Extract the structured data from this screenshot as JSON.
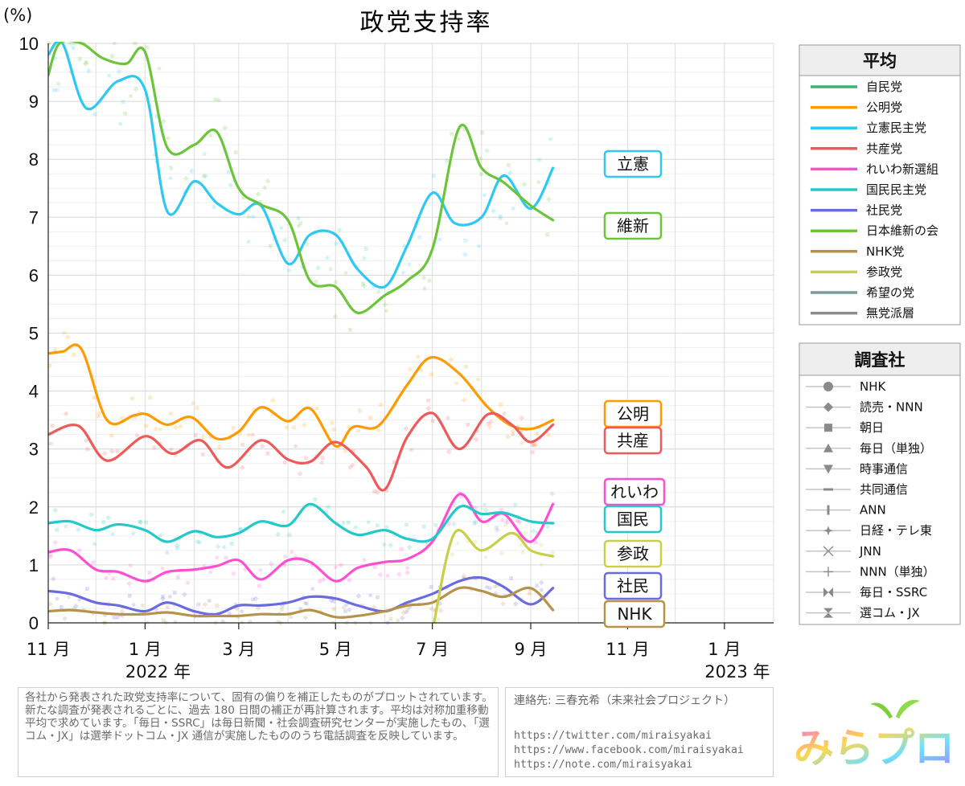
{
  "chart_data": {
    "type": "line",
    "title": "政党支持率",
    "ylabel": "(%)",
    "ylim": [
      0,
      10
    ],
    "yticks": [
      0,
      1,
      2,
      3,
      4,
      5,
      6,
      7,
      8,
      9,
      10
    ],
    "xlim": [
      "2021-11-01",
      "2023-02-01"
    ],
    "xticks": [
      {
        "date": "2021-11-01",
        "label": "11 月"
      },
      {
        "date": "2022-01-01",
        "label": "1 月"
      },
      {
        "date": "2022-03-01",
        "label": "3 月"
      },
      {
        "date": "2022-05-01",
        "label": "5 月"
      },
      {
        "date": "2022-07-01",
        "label": "7 月"
      },
      {
        "date": "2022-09-01",
        "label": "9 月"
      },
      {
        "date": "2022-11-01",
        "label": "11 月"
      },
      {
        "date": "2023-01-01",
        "label": "1 月"
      }
    ],
    "year_labels": [
      {
        "date": "2022-01-01",
        "label": "2022 年"
      },
      {
        "date": "2023-01-01",
        "label": "2023 年"
      }
    ],
    "grid": true,
    "series": [
      {
        "name": "自民党",
        "color": "#3cb371",
        "points": []
      },
      {
        "name": "公明党",
        "color": "#ff9a00",
        "tag": "公明",
        "points": [
          [
            "2021-11-01",
            4.65
          ],
          [
            "2021-11-10",
            4.68
          ],
          [
            "2021-11-22",
            4.72
          ],
          [
            "2021-12-08",
            3.5
          ],
          [
            "2021-12-25",
            3.58
          ],
          [
            "2022-01-02",
            3.6
          ],
          [
            "2022-01-15",
            3.42
          ],
          [
            "2022-01-30",
            3.55
          ],
          [
            "2022-02-15",
            3.18
          ],
          [
            "2022-03-01",
            3.3
          ],
          [
            "2022-03-15",
            3.72
          ],
          [
            "2022-04-01",
            3.48
          ],
          [
            "2022-04-15",
            3.7
          ],
          [
            "2022-05-01",
            3.05
          ],
          [
            "2022-05-12",
            3.38
          ],
          [
            "2022-05-28",
            3.4
          ],
          [
            "2022-06-15",
            4.1
          ],
          [
            "2022-06-30",
            4.58
          ],
          [
            "2022-07-18",
            4.3
          ],
          [
            "2022-08-05",
            3.72
          ],
          [
            "2022-08-20",
            3.4
          ],
          [
            "2022-09-02",
            3.35
          ],
          [
            "2022-09-15",
            3.5
          ]
        ]
      },
      {
        "name": "立憲民主党",
        "color": "#2ec8f3",
        "tag": "立憲",
        "points": [
          [
            "2021-11-01",
            9.8
          ],
          [
            "2021-11-10",
            10.0
          ],
          [
            "2021-11-25",
            8.88
          ],
          [
            "2021-12-15",
            9.35
          ],
          [
            "2022-01-01",
            9.2
          ],
          [
            "2022-01-15",
            7.1
          ],
          [
            "2022-02-01",
            7.62
          ],
          [
            "2022-02-15",
            7.25
          ],
          [
            "2022-03-01",
            7.05
          ],
          [
            "2022-03-15",
            7.2
          ],
          [
            "2022-04-01",
            6.2
          ],
          [
            "2022-04-15",
            6.7
          ],
          [
            "2022-05-01",
            6.7
          ],
          [
            "2022-05-15",
            6.1
          ],
          [
            "2022-06-01",
            5.8
          ],
          [
            "2022-06-15",
            6.5
          ],
          [
            "2022-07-01",
            7.42
          ],
          [
            "2022-07-15",
            6.9
          ],
          [
            "2022-08-01",
            7.0
          ],
          [
            "2022-08-15",
            7.72
          ],
          [
            "2022-09-01",
            7.15
          ],
          [
            "2022-09-15",
            7.85
          ]
        ]
      },
      {
        "name": "共産党",
        "color": "#ee5a5a",
        "tag": "共産",
        "points": [
          [
            "2021-11-01",
            3.25
          ],
          [
            "2021-11-20",
            3.4
          ],
          [
            "2021-12-08",
            2.8
          ],
          [
            "2022-01-01",
            3.22
          ],
          [
            "2022-01-18",
            2.92
          ],
          [
            "2022-02-05",
            3.15
          ],
          [
            "2022-02-22",
            2.68
          ],
          [
            "2022-03-15",
            3.15
          ],
          [
            "2022-04-01",
            2.82
          ],
          [
            "2022-04-15",
            2.78
          ],
          [
            "2022-05-01",
            3.12
          ],
          [
            "2022-05-20",
            2.7
          ],
          [
            "2022-06-01",
            2.3
          ],
          [
            "2022-06-15",
            3.2
          ],
          [
            "2022-07-01",
            3.62
          ],
          [
            "2022-07-18",
            3.0
          ],
          [
            "2022-08-05",
            3.6
          ],
          [
            "2022-08-20",
            3.42
          ],
          [
            "2022-09-01",
            3.12
          ],
          [
            "2022-09-15",
            3.42
          ]
        ]
      },
      {
        "name": "れいわ新選組",
        "color": "#ff4fd0",
        "tag": "れいわ",
        "points": [
          [
            "2021-11-01",
            1.22
          ],
          [
            "2021-11-15",
            1.25
          ],
          [
            "2021-12-01",
            0.92
          ],
          [
            "2021-12-15",
            0.88
          ],
          [
            "2022-01-01",
            0.72
          ],
          [
            "2022-01-15",
            0.88
          ],
          [
            "2022-02-01",
            0.92
          ],
          [
            "2022-02-15",
            0.98
          ],
          [
            "2022-03-01",
            1.08
          ],
          [
            "2022-03-15",
            0.75
          ],
          [
            "2022-04-01",
            1.08
          ],
          [
            "2022-04-15",
            1.05
          ],
          [
            "2022-05-01",
            0.72
          ],
          [
            "2022-05-15",
            0.95
          ],
          [
            "2022-06-01",
            1.05
          ],
          [
            "2022-06-15",
            1.1
          ],
          [
            "2022-07-01",
            1.4
          ],
          [
            "2022-07-18",
            2.22
          ],
          [
            "2022-08-01",
            1.75
          ],
          [
            "2022-08-15",
            1.88
          ],
          [
            "2022-09-01",
            1.4
          ],
          [
            "2022-09-15",
            2.05
          ]
        ]
      },
      {
        "name": "国民民主党",
        "color": "#23c8c8",
        "tag": "国民",
        "points": [
          [
            "2021-11-01",
            1.72
          ],
          [
            "2021-11-15",
            1.75
          ],
          [
            "2021-12-01",
            1.6
          ],
          [
            "2021-12-15",
            1.7
          ],
          [
            "2022-01-01",
            1.6
          ],
          [
            "2022-01-15",
            1.4
          ],
          [
            "2022-02-01",
            1.58
          ],
          [
            "2022-02-15",
            1.48
          ],
          [
            "2022-03-01",
            1.55
          ],
          [
            "2022-03-15",
            1.75
          ],
          [
            "2022-04-01",
            1.68
          ],
          [
            "2022-04-15",
            2.05
          ],
          [
            "2022-05-01",
            1.72
          ],
          [
            "2022-05-15",
            1.52
          ],
          [
            "2022-06-01",
            1.6
          ],
          [
            "2022-06-15",
            1.45
          ],
          [
            "2022-07-01",
            1.45
          ],
          [
            "2022-07-18",
            2.0
          ],
          [
            "2022-08-01",
            1.88
          ],
          [
            "2022-08-15",
            1.9
          ],
          [
            "2022-09-01",
            1.75
          ],
          [
            "2022-09-15",
            1.72
          ]
        ]
      },
      {
        "name": "社民党",
        "color": "#6b6be0",
        "tag": "社民",
        "points": [
          [
            "2021-11-01",
            0.55
          ],
          [
            "2021-11-15",
            0.5
          ],
          [
            "2021-12-01",
            0.35
          ],
          [
            "2021-12-15",
            0.3
          ],
          [
            "2022-01-01",
            0.2
          ],
          [
            "2022-01-15",
            0.35
          ],
          [
            "2022-02-01",
            0.2
          ],
          [
            "2022-02-15",
            0.15
          ],
          [
            "2022-03-01",
            0.3
          ],
          [
            "2022-03-15",
            0.3
          ],
          [
            "2022-04-01",
            0.35
          ],
          [
            "2022-04-15",
            0.45
          ],
          [
            "2022-05-01",
            0.42
          ],
          [
            "2022-05-15",
            0.3
          ],
          [
            "2022-06-01",
            0.2
          ],
          [
            "2022-06-15",
            0.35
          ],
          [
            "2022-07-01",
            0.5
          ],
          [
            "2022-07-18",
            0.72
          ],
          [
            "2022-08-01",
            0.78
          ],
          [
            "2022-08-15",
            0.62
          ],
          [
            "2022-09-01",
            0.32
          ],
          [
            "2022-09-15",
            0.6
          ]
        ]
      },
      {
        "name": "日本維新の会",
        "color": "#6cc43a",
        "tag": "維新",
        "points": [
          [
            "2021-11-01",
            9.45
          ],
          [
            "2021-11-08",
            10.0
          ],
          [
            "2021-11-22",
            10.0
          ],
          [
            "2021-12-05",
            9.75
          ],
          [
            "2021-12-20",
            9.65
          ],
          [
            "2022-01-01",
            9.85
          ],
          [
            "2022-01-15",
            8.2
          ],
          [
            "2022-02-01",
            8.25
          ],
          [
            "2022-02-15",
            8.48
          ],
          [
            "2022-03-01",
            7.5
          ],
          [
            "2022-03-15",
            7.22
          ],
          [
            "2022-04-01",
            6.95
          ],
          [
            "2022-04-15",
            5.9
          ],
          [
            "2022-05-01",
            5.8
          ],
          [
            "2022-05-15",
            5.35
          ],
          [
            "2022-06-01",
            5.65
          ],
          [
            "2022-06-15",
            5.9
          ],
          [
            "2022-07-01",
            6.45
          ],
          [
            "2022-07-18",
            8.55
          ],
          [
            "2022-08-01",
            7.85
          ],
          [
            "2022-08-15",
            7.6
          ],
          [
            "2022-09-01",
            7.2
          ],
          [
            "2022-09-15",
            6.95
          ]
        ]
      },
      {
        "name": "NHK党",
        "color": "#b8924a",
        "tag": "NHK",
        "points": [
          [
            "2021-11-01",
            0.2
          ],
          [
            "2021-11-15",
            0.22
          ],
          [
            "2021-12-01",
            0.18
          ],
          [
            "2021-12-15",
            0.15
          ],
          [
            "2022-01-01",
            0.15
          ],
          [
            "2022-01-15",
            0.18
          ],
          [
            "2022-02-01",
            0.12
          ],
          [
            "2022-02-15",
            0.12
          ],
          [
            "2022-03-01",
            0.12
          ],
          [
            "2022-03-15",
            0.15
          ],
          [
            "2022-04-01",
            0.15
          ],
          [
            "2022-04-15",
            0.22
          ],
          [
            "2022-05-01",
            0.1
          ],
          [
            "2022-05-15",
            0.12
          ],
          [
            "2022-06-01",
            0.2
          ],
          [
            "2022-06-15",
            0.3
          ],
          [
            "2022-07-01",
            0.35
          ],
          [
            "2022-07-18",
            0.6
          ],
          [
            "2022-08-01",
            0.55
          ],
          [
            "2022-08-15",
            0.45
          ],
          [
            "2022-09-01",
            0.6
          ],
          [
            "2022-09-15",
            0.22
          ]
        ]
      },
      {
        "name": "参政党",
        "color": "#c8d04a",
        "tag": "参政",
        "points": [
          [
            "2022-07-02",
            0.0
          ],
          [
            "2022-07-15",
            1.55
          ],
          [
            "2022-08-01",
            1.25
          ],
          [
            "2022-08-20",
            1.55
          ],
          [
            "2022-09-01",
            1.25
          ],
          [
            "2022-09-15",
            1.15
          ]
        ]
      },
      {
        "name": "希望の党",
        "color": "#7a9a98",
        "points": []
      },
      {
        "name": "無党派層",
        "color": "#8c8c8c",
        "points": []
      }
    ]
  },
  "legend_party": {
    "title": "平均",
    "items": [
      {
        "label": "自民党",
        "color": "#3cb371"
      },
      {
        "label": "公明党",
        "color": "#ff9a00"
      },
      {
        "label": "立憲民主党",
        "color": "#2ec8f3"
      },
      {
        "label": "共産党",
        "color": "#ee5a5a"
      },
      {
        "label": "れいわ新選組",
        "color": "#ff4fd0"
      },
      {
        "label": "国民民主党",
        "color": "#23c8c8"
      },
      {
        "label": "社民党",
        "color": "#6b6be0"
      },
      {
        "label": "日本維新の会",
        "color": "#6cc43a"
      },
      {
        "label": "NHK党",
        "color": "#b8924a"
      },
      {
        "label": "参政党",
        "color": "#c8d04a"
      },
      {
        "label": "希望の党",
        "color": "#7a9a98"
      },
      {
        "label": "無党派層",
        "color": "#8c8c8c"
      }
    ]
  },
  "legend_pollster": {
    "title": "調査社",
    "items": [
      {
        "label": "NHK",
        "marker": "circle"
      },
      {
        "label": "読売・NNN",
        "marker": "diamond"
      },
      {
        "label": "朝日",
        "marker": "square"
      },
      {
        "label": "毎日（単独）",
        "marker": "triangle-up"
      },
      {
        "label": "時事通信",
        "marker": "triangle-down"
      },
      {
        "label": "共同通信",
        "marker": "hbar"
      },
      {
        "label": "ANN",
        "marker": "vbar"
      },
      {
        "label": "日経・テレ東",
        "marker": "star4"
      },
      {
        "label": "JNN",
        "marker": "x"
      },
      {
        "label": "NNN（単独）",
        "marker": "plus"
      },
      {
        "label": "毎日・SSRC",
        "marker": "bowtie"
      },
      {
        "label": "選コム・JX",
        "marker": "hourglass"
      }
    ]
  },
  "notes": {
    "description": "各社から発表された政党支持率について、固有の偏りを補正したものがプロットされています。新たな調査が発表されるごとに、過去 180 日間の補正が再計算されます。平均は対称加重移動平均で求めています。「毎日・SSRC」は毎日新聞・社会調査研究センターが実施したもの、「選コム・JX」は選挙ドットコム・JX 通信が実施したもののうち電話調査を反映しています。",
    "contact": "連絡先: 三春充希（未来社会プロジェクト）",
    "links": [
      "https://twitter.com/miraisyakai",
      "https://www.facebook.com/miraisyakai",
      "https://note.com/miraisyakai"
    ]
  },
  "logo": {
    "text": "みらプロ"
  }
}
